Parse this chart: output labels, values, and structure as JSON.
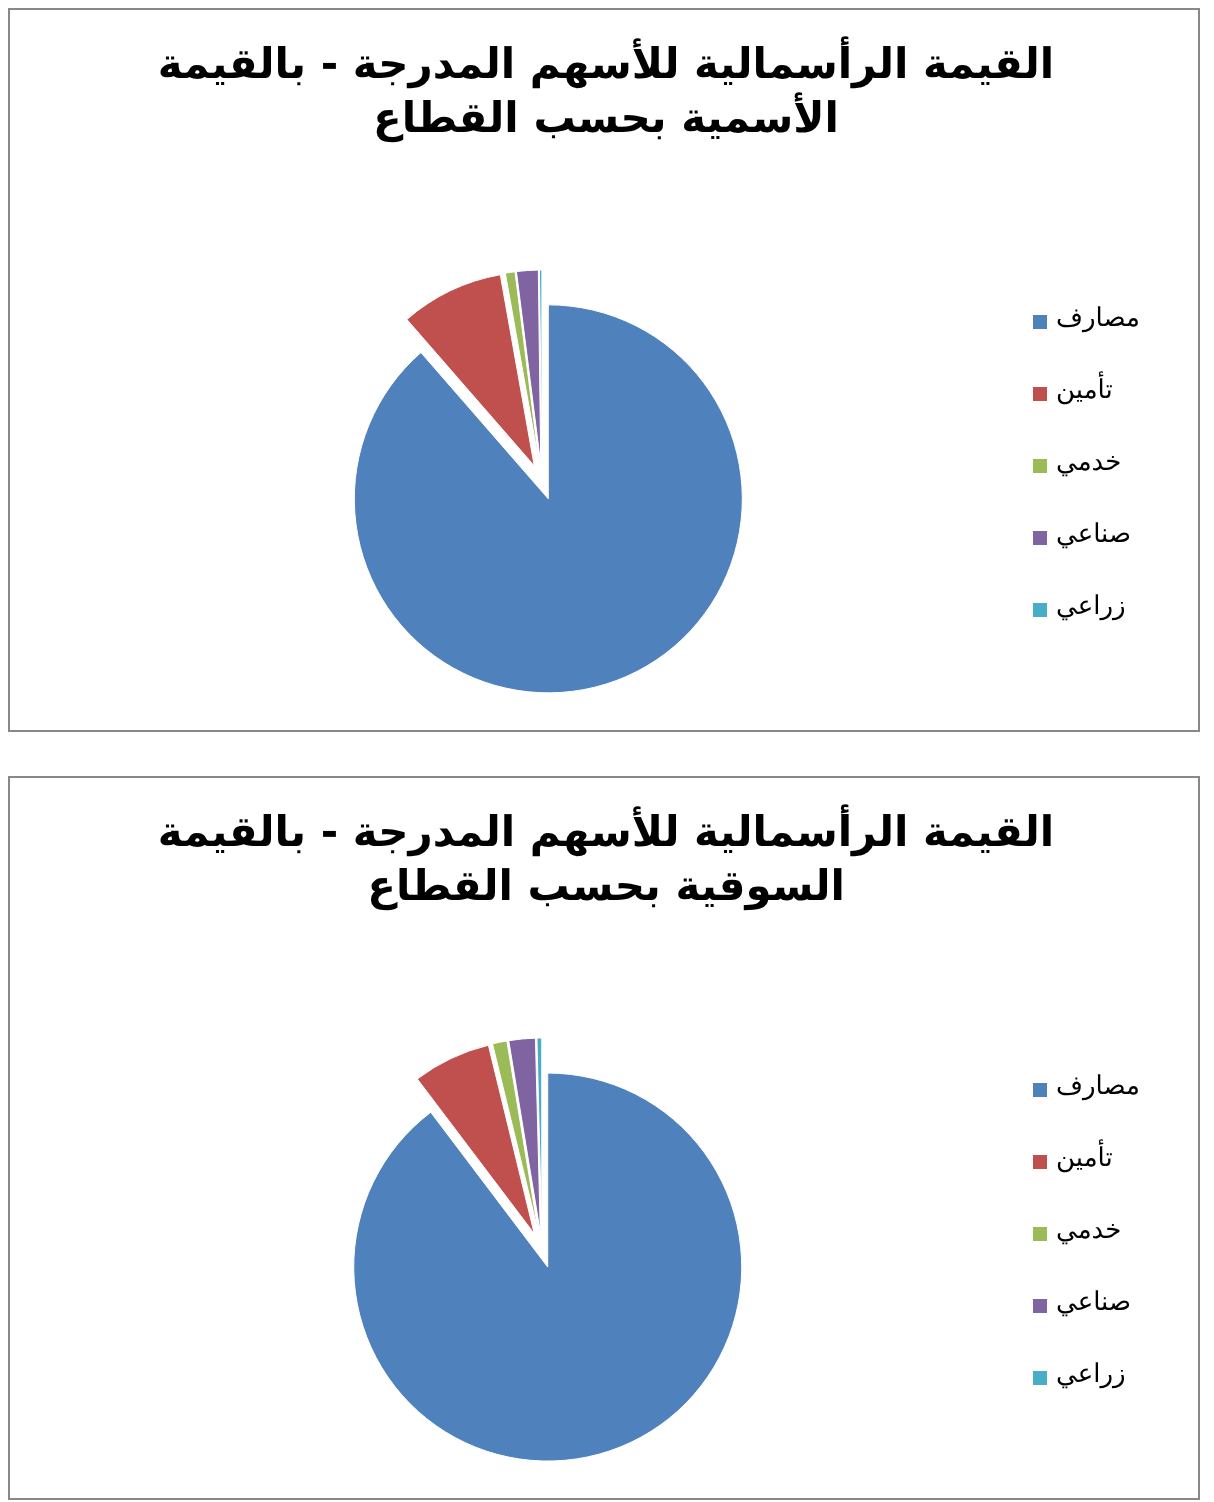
{
  "chart_data": [
    {
      "type": "pie",
      "title": "القيمة الرأسمالية للأسهم المدرجة - بالقيمة الأسمية بحسب القطاع",
      "categories": [
        "مصارف",
        "تأمين",
        "خدمي",
        "صناعي",
        "زراعي"
      ],
      "values": [
        88.6,
        8.6,
        0.8,
        1.8,
        0.2
      ],
      "colors": [
        "#4f81bd",
        "#c0504d",
        "#9bbb59",
        "#8064a2",
        "#4bacc6"
      ],
      "legend": "right"
    },
    {
      "type": "pie",
      "title": "القيمة الرأسمالية للأسهم المدرجة - بالقيمة السوقية بحسب القطاع",
      "categories": [
        "مصارف",
        "تأمين",
        "خدمي",
        "صناعي",
        "زراعي"
      ],
      "values": [
        89.7,
        6.5,
        1.2,
        2.2,
        0.4
      ],
      "colors": [
        "#4f81bd",
        "#c0504d",
        "#9bbb59",
        "#8064a2",
        "#4bacc6"
      ],
      "legend": "right"
    }
  ]
}
